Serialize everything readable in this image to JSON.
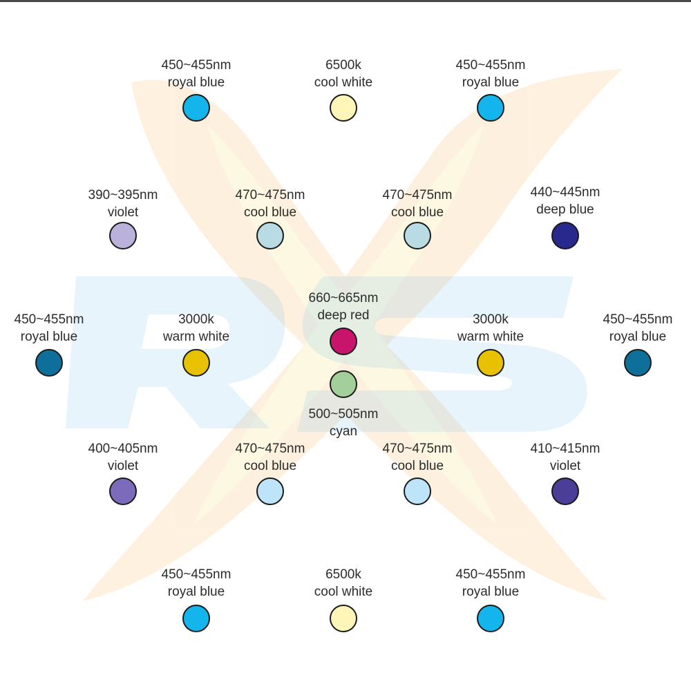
{
  "colors": {
    "royal_blue": "#14b4ec",
    "royal_blue_dark": "#0d6f9a",
    "cool_white": "#fdf6b8",
    "warm_white": "#e8c100",
    "violet_light": "#bbb2dc",
    "violet_mid": "#7c6bbb",
    "violet_dark": "#4a3e98",
    "cool_blue_grey": "#b8dbe4",
    "cool_blue_light": "#bde4f8",
    "deep_blue": "#27298c",
    "deep_red": "#c8146b",
    "cyan": "#a3d09a",
    "outline": "#1a1a1a"
  },
  "watermark": {
    "text": "RS",
    "flame_color": "#f6c24a",
    "letters_color": "#7fc2ee"
  },
  "leds": [
    {
      "id": "r1-left",
      "wavelength": "450~455nm",
      "name": "royal blue",
      "color_key": "royal_blue"
    },
    {
      "id": "r1-center",
      "wavelength": "6500k",
      "name": "cool white",
      "color_key": "cool_white"
    },
    {
      "id": "r1-right",
      "wavelength": "450~455nm",
      "name": "royal blue",
      "color_key": "royal_blue"
    },
    {
      "id": "r2-c1",
      "wavelength": "390~395nm",
      "name": "violet",
      "color_key": "violet_light"
    },
    {
      "id": "r2-c2",
      "wavelength": "470~475nm",
      "name": "cool blue",
      "color_key": "cool_blue_grey"
    },
    {
      "id": "r2-c3",
      "wavelength": "470~475nm",
      "name": "cool blue",
      "color_key": "cool_blue_grey"
    },
    {
      "id": "r2-c4",
      "wavelength": "440~445nm",
      "name": "deep blue",
      "color_key": "deep_blue"
    },
    {
      "id": "r3-c1",
      "wavelength": "450~455nm",
      "name": "royal blue",
      "color_key": "royal_blue_dark"
    },
    {
      "id": "r3-c2",
      "wavelength": "3000k",
      "name": "warm white",
      "color_key": "warm_white"
    },
    {
      "id": "r3-red",
      "wavelength": "660~665nm",
      "name": "deep red",
      "color_key": "deep_red"
    },
    {
      "id": "r3-c4",
      "wavelength": "3000k",
      "name": "warm white",
      "color_key": "warm_white"
    },
    {
      "id": "r3-c5",
      "wavelength": "450~455nm",
      "name": "royal blue",
      "color_key": "royal_blue_dark"
    },
    {
      "id": "r3-cyan",
      "wavelength": "500~505nm",
      "name": "cyan",
      "color_key": "cyan"
    },
    {
      "id": "r4-c1",
      "wavelength": "400~405nm",
      "name": "violet",
      "color_key": "violet_mid"
    },
    {
      "id": "r4-c2",
      "wavelength": "470~475nm",
      "name": "cool blue",
      "color_key": "cool_blue_light"
    },
    {
      "id": "r4-c3",
      "wavelength": "470~475nm",
      "name": "cool blue",
      "color_key": "cool_blue_light"
    },
    {
      "id": "r4-c4",
      "wavelength": "410~415nm",
      "name": "violet",
      "color_key": "violet_dark"
    },
    {
      "id": "r5-left",
      "wavelength": "450~455nm",
      "name": "royal blue",
      "color_key": "royal_blue"
    },
    {
      "id": "r5-center",
      "wavelength": "6500k",
      "name": "cool white",
      "color_key": "cool_white"
    },
    {
      "id": "r5-right",
      "wavelength": "450~455nm",
      "name": "royal blue",
      "color_key": "royal_blue"
    }
  ]
}
